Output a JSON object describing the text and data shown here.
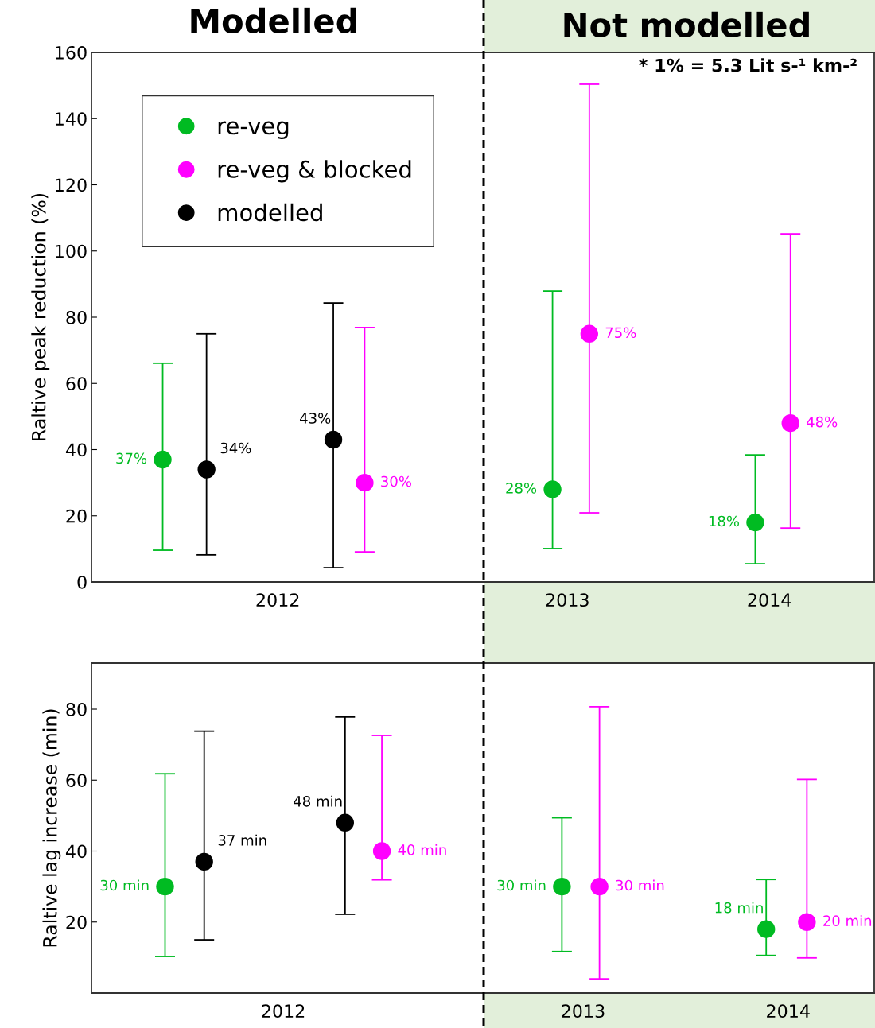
{
  "chart_data": [
    {
      "type": "scatter",
      "ylabel": "Raltive peak reduction (%)",
      "categories": [
        "2012",
        "2013",
        "2014"
      ],
      "ylim": [
        0,
        160
      ],
      "yticks": [
        0,
        20,
        40,
        60,
        80,
        100,
        120,
        140,
        160
      ],
      "grid": false,
      "legend": "top left",
      "marker": "circle",
      "annotations": [
        "Modelled",
        "Not modelled",
        "* 1% = 5.3 Lit s-¹ km-²"
      ],
      "series": [
        {
          "name": "re-veg",
          "color": "#00bb22",
          "values": [
            37,
            28,
            18
          ],
          "errors": [
            [
              9.6,
              66.1
            ],
            [
              10.1,
              87.9
            ],
            [
              5.5,
              38.4
            ]
          ],
          "value_labels": [
            "37%",
            "28%",
            "18%"
          ]
        },
        {
          "name": "re-veg & blocked",
          "color": "#ff00ff",
          "values": [
            30,
            75,
            48
          ],
          "errors": [
            [
              9.1,
              76.9
            ],
            [
              20.9,
              150.4
            ],
            [
              16.3,
              105.2
            ]
          ],
          "value_labels": [
            "30%",
            "75%",
            "48%"
          ]
        },
        {
          "name": "modelled",
          "color": "#000000",
          "values": [
            34,
            null,
            null
          ],
          "errors": [
            [
              8.2,
              75.0
            ],
            null,
            null
          ],
          "value_labels": [
            "34%",
            null,
            null
          ]
        },
        {
          "color": "#000000",
          "values": [
            43,
            null,
            null
          ],
          "errors": [
            [
              4.3,
              84.3
            ],
            null,
            null
          ],
          "value_labels": [
            "43%",
            null,
            null
          ]
        }
      ]
    },
    {
      "type": "scatter",
      "ylabel": "Raltive lag increase (min)",
      "categories": [
        "2012",
        "2013",
        "2014"
      ],
      "ylim": [
        0,
        93
      ],
      "yticks": [
        20,
        40,
        60,
        80
      ],
      "grid": false,
      "legend": false,
      "marker": "circle",
      "series": [
        {
          "color": "#00bb22",
          "values": [
            30,
            30,
            18
          ],
          "errors": [
            [
              10.3,
              61.8
            ],
            [
              11.7,
              49.4
            ],
            [
              10.6,
              32.0
            ]
          ],
          "value_labels": [
            "30 min",
            "30 min",
            "18 min"
          ]
        },
        {
          "color": "#ff00ff",
          "values": [
            40,
            30,
            20
          ],
          "errors": [
            [
              31.9,
              72.6
            ],
            [
              4.0,
              80.7
            ],
            [
              9.9,
              60.2
            ]
          ],
          "value_labels": [
            "40 min",
            "30 min",
            "20 min"
          ]
        },
        {
          "color": "#000000",
          "values": [
            37,
            null,
            null
          ],
          "errors": [
            [
              15.0,
              73.8
            ],
            null,
            null
          ],
          "value_labels": [
            "37 min",
            null,
            null
          ]
        },
        {
          "color": "#000000",
          "values": [
            48,
            null,
            null
          ],
          "errors": [
            [
              22.2,
              77.8
            ],
            null,
            null
          ],
          "value_labels": [
            "48 min",
            null,
            null
          ]
        }
      ]
    }
  ]
}
